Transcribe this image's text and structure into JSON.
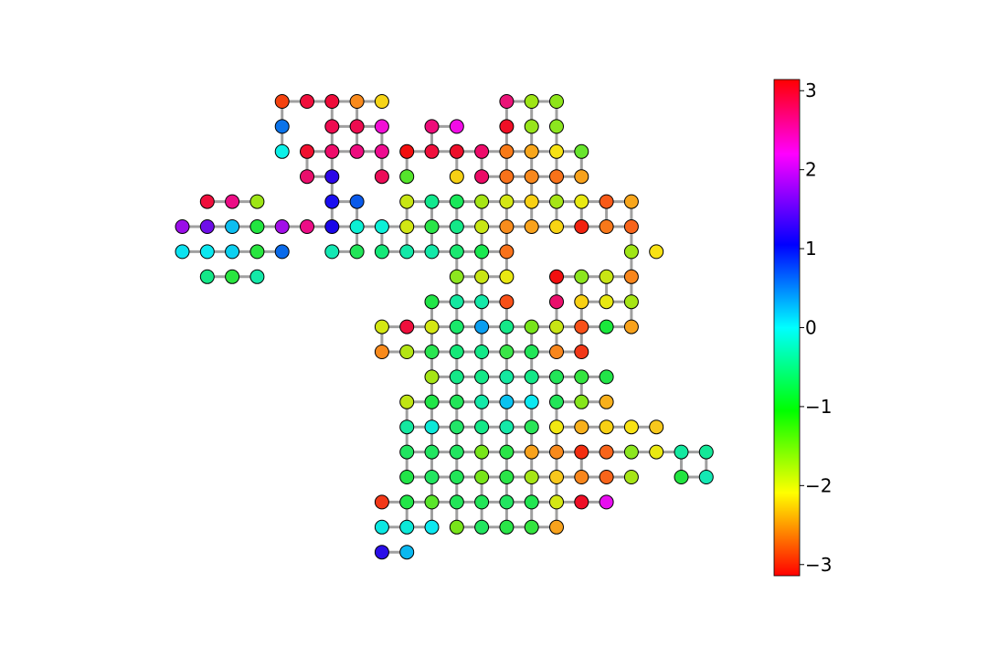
{
  "chart_data": {
    "type": "scatter",
    "title": "",
    "xlabel": "",
    "ylabel": "",
    "grid": false,
    "node_color_scale": "hsv",
    "node_edge_color": "#000000",
    "edge_color": "#a0a0a0",
    "colorbar": {
      "label": "",
      "range": [
        -3.14159,
        3.14159
      ],
      "ticks": [
        3,
        2,
        1,
        0,
        -1,
        -2,
        -3
      ],
      "tick_labels": [
        "3",
        "2",
        "1",
        "0",
        "−1",
        "−2",
        "−3"
      ],
      "stops": [
        {
          "value": 3.14159,
          "color": "#ff0000"
        },
        {
          "value": 2.2,
          "color": "#ff00ff"
        },
        {
          "value": 1.05,
          "color": "#0000ff"
        },
        {
          "value": 0.0,
          "color": "#00ffff"
        },
        {
          "value": -1.05,
          "color": "#00ff00"
        },
        {
          "value": -2.09,
          "color": "#ffff00"
        },
        {
          "value": -3.14159,
          "color": "#ff0000"
        }
      ]
    },
    "grid_layout": {
      "columns": 22,
      "rows": 20
    },
    "rows": [
      {
        "y": 0,
        "x0": 4,
        "values": [
          "#f4420f",
          "#ef0f3c",
          "#ee0c3a",
          "#f88a1c",
          "#f6d417",
          null,
          null,
          null,
          null,
          "#ea1478",
          "#9ee516",
          "#8ee51a"
        ]
      },
      {
        "y": 1,
        "x0": 4,
        "values": [
          "#0a73ea",
          null,
          "#ee0c50",
          "#ee0c50",
          "#f10fd5",
          null,
          "#ee0c7a",
          "#f20ce7",
          null,
          "#ef0f26",
          "#98e51b",
          "#8ce61f"
        ]
      },
      {
        "y": 2,
        "x0": 4,
        "values": [
          "#0df0e8",
          "#f0102f",
          "#ee0c6a",
          "#ee0c7f",
          "#ee0c90",
          "#f20f0f",
          "#ef0f3c",
          "#ed0f2a",
          "#ed0c6a",
          "#f87a18",
          "#f8a61c",
          "#f6e214",
          "#68e52d"
        ]
      },
      {
        "y": 3,
        "x0": 5,
        "values": [
          "#ea0f6c",
          "#2c06e8",
          null,
          "#ec0d58",
          "#54e52c",
          null,
          "#f6d014",
          "#ec0b66",
          "#f8721a",
          "#f8881c",
          "#f8721a",
          "#f8a21c"
        ]
      },
      {
        "y": 4,
        "x0": 1,
        "values": [
          "#ef0f3c",
          "#ec0d86",
          "#9ee516",
          null,
          null,
          "#1a0ef0",
          "#0a5aea",
          null,
          "#c8e514",
          "#12e88e",
          "#1ae85a",
          "#a6e516",
          "#d4e714",
          "#f8d014",
          "#a6e516",
          "#e8e812",
          "#f85a18",
          "#f8a61c"
        ]
      },
      {
        "y": 5,
        "x0": 0,
        "values": [
          "#9a0ee8",
          "#6e0ee8",
          "#0cbef0",
          "#22e540",
          "#a20ee8",
          "#ec0d86",
          "#1a06e8",
          "#0cf0d4",
          "#0cf0d8",
          "#d2e714",
          "#2ae548",
          "#14e888",
          "#c8e614",
          "#f88c1c",
          "#f8a21c",
          "#f8d414",
          "#f2220f",
          "#f8781a",
          "#f8641a"
        ]
      },
      {
        "y": 6,
        "x0": 0,
        "values": [
          "#0ce2f0",
          "#0ce8f0",
          "#0cd0f0",
          "#2ae540",
          "#0a6aea",
          null,
          "#14e8b4",
          "#22e558",
          "#14e878",
          "#14e8a8",
          "#14e8a8",
          "#1ae870",
          "#1ae850",
          "#f8721a",
          null,
          null,
          null,
          null,
          "#a0e516",
          "#f8e214"
        ]
      },
      {
        "y": 7,
        "x0": 1,
        "values": [
          "#14e888",
          "#2ae540",
          "#14e8a8",
          null,
          null,
          null,
          null,
          null,
          null,
          null,
          "#8ce61f",
          "#c8e514",
          "#eae812",
          null,
          "#f20f0f",
          "#8ce61f",
          "#c8e514",
          "#f8861c"
        ]
      },
      {
        "y": 8,
        "x0": 10,
        "values": [
          "#22e548",
          "#14e8a0",
          "#14e8a8",
          "#f85018",
          null,
          "#ea0f6c",
          "#f8d014",
          "#e8e812",
          "#a6e516"
        ]
      },
      {
        "y": 9,
        "x0": 8,
        "values": [
          "#d4e714",
          "#ef0f3c",
          "#d4e714",
          "#1ae86a",
          "#0a9ef0",
          "#14e888",
          "#78e51a",
          "#c8e514",
          "#f85018",
          "#1ae83c",
          "#f8a21c"
        ]
      },
      {
        "y": 10,
        "x0": 8,
        "values": [
          "#f88a1c",
          "#b4e514",
          "#2ae550",
          "#14e878",
          "#14e888",
          "#3ae548",
          "#22e558",
          "#f8861c",
          "#f23818"
        ]
      },
      {
        "y": 11,
        "x0": 10,
        "values": [
          "#a6e516",
          "#14e888",
          "#14e888",
          "#14e8a0",
          "#14e888",
          "#22e558",
          "#34e540",
          "#22e548"
        ]
      },
      {
        "y": 12,
        "x0": 9,
        "values": [
          "#c0e514",
          "#22e548",
          "#22e558",
          "#14e8a8",
          "#0ac2f0",
          "#0ce8f0",
          "#22e558",
          "#86e51c",
          "#f8b01c"
        ]
      },
      {
        "y": 13,
        "x0": 9,
        "values": [
          "#14e8a0",
          "#0ce8d8",
          "#22e568",
          "#14e888",
          "#14e8a8",
          "#2ae558",
          "#f2e812",
          "#f8b01c",
          "#f8d014",
          "#f8e214",
          "#f8c81c"
        ]
      },
      {
        "y": 14,
        "x0": 9,
        "values": [
          "#22e560",
          "#22e560",
          "#22e560",
          "#78e51a",
          "#2ae548",
          "#f8a21c",
          "#f88a1c",
          "#f22e10",
          "#f8641a",
          "#8ce61f",
          "#eae812",
          "#14e8a0",
          "#14e898"
        ]
      },
      {
        "y": 15,
        "x0": 9,
        "values": [
          "#22e548",
          "#22e560",
          "#22e558",
          "#78e51a",
          "#2ae548",
          "#a6e516",
          "#f8c81c",
          "#f8861c",
          "#f8641a",
          "#a6e516",
          null,
          "#22e540",
          "#14e8b4"
        ]
      },
      {
        "y": 16,
        "x0": 8,
        "values": [
          "#f23818",
          "#22e548",
          "#5ae52a",
          "#22e558",
          "#22e558",
          "#22e560",
          "#22e550",
          "#d4e714",
          "#ef0f26",
          "#e80ef0"
        ]
      },
      {
        "y": 17,
        "x0": 8,
        "values": [
          "#0ce8e2",
          "#0ce8d8",
          "#0ce8f0",
          "#78e51a",
          "#22e560",
          "#2ae548",
          "#34e540",
          "#f8a21c"
        ]
      },
      {
        "y": 18,
        "x0": 8,
        "values": [
          "#2a0ee8",
          "#0ab8f0"
        ]
      }
    ],
    "edge_rows": [
      {
        "y": 0,
        "x": [
          4,
          5,
          6,
          7
        ],
        "len": [
          1,
          1,
          1,
          1
        ]
      },
      {
        "y": 0,
        "x": [
          13,
          14
        ],
        "len": [
          1,
          1
        ]
      },
      {
        "y": 1,
        "x": [
          6,
          7,
          10
        ],
        "len": [
          1,
          1,
          1
        ]
      },
      {
        "y": 2,
        "x": [
          5,
          6,
          7,
          9,
          10,
          11,
          12,
          13,
          14,
          15
        ],
        "len": [
          1,
          1,
          1,
          1,
          1,
          1,
          1,
          1,
          1,
          1
        ]
      },
      {
        "y": 3,
        "x": [
          5,
          12,
          13,
          14,
          15
        ],
        "len": [
          1,
          1,
          1,
          1,
          1
        ]
      },
      {
        "y": 4,
        "x": [
          1,
          2,
          6,
          9,
          10,
          11,
          12,
          13,
          14,
          15,
          16,
          17
        ],
        "len": [
          1,
          1,
          1,
          1,
          1,
          1,
          1,
          1,
          1,
          1,
          1,
          1
        ]
      },
      {
        "y": 5,
        "x": [
          0,
          1,
          2,
          3,
          4,
          5,
          6,
          7,
          8,
          9,
          10,
          11,
          12,
          13,
          14,
          15,
          16,
          17
        ],
        "len": [
          1,
          1,
          1,
          1,
          1,
          1,
          1,
          1,
          1,
          1,
          1,
          1,
          1,
          1,
          1,
          1,
          1,
          1
        ]
      },
      {
        "y": 6,
        "x": [
          0,
          1,
          2,
          3,
          6,
          8,
          9,
          10,
          11,
          12
        ],
        "len": [
          1,
          1,
          1,
          1,
          1,
          1,
          1,
          1,
          1,
          1
        ]
      },
      {
        "y": 7,
        "x": [
          1,
          2,
          11,
          12,
          15,
          16,
          17
        ],
        "len": [
          1,
          1,
          1,
          1,
          1,
          1,
          1
        ]
      },
      {
        "y": 8,
        "x": [
          10,
          11,
          12,
          16,
          17,
          18
        ],
        "len": [
          1,
          1,
          1,
          1,
          1,
          1
        ]
      },
      {
        "y": 9,
        "x": [
          8,
          9,
          10,
          11,
          12,
          13,
          14,
          15,
          16,
          17
        ],
        "len": [
          1,
          1,
          1,
          1,
          1,
          1,
          1,
          1,
          1,
          1
        ]
      },
      {
        "y": 10,
        "x": [
          8,
          9,
          10,
          11,
          12,
          13,
          14,
          15
        ],
        "len": [
          1,
          1,
          1,
          1,
          1,
          1,
          1,
          1
        ]
      },
      {
        "y": 11,
        "x": [
          10,
          11,
          12,
          13,
          14,
          15,
          16
        ],
        "len": [
          1,
          1,
          1,
          1,
          1,
          1,
          1
        ]
      },
      {
        "y": 12,
        "x": [
          9,
          10,
          11,
          12,
          13,
          15,
          16
        ],
        "len": [
          1,
          1,
          1,
          1,
          1,
          1,
          1
        ]
      },
      {
        "y": 13,
        "x": [
          9,
          10,
          11,
          12,
          13,
          15,
          16,
          17,
          18
        ],
        "len": [
          1,
          1,
          1,
          1,
          1,
          1,
          1,
          1,
          1
        ]
      },
      {
        "y": 14,
        "x": [
          9,
          10,
          11,
          12,
          13,
          14,
          15,
          16,
          17,
          18,
          19,
          20
        ],
        "len": [
          1,
          1,
          1,
          1,
          1,
          1,
          1,
          1,
          1,
          1,
          1,
          1
        ]
      },
      {
        "y": 15,
        "x": [
          9,
          10,
          11,
          12,
          13,
          14,
          15,
          16,
          17,
          20
        ],
        "len": [
          1,
          1,
          1,
          1,
          1,
          1,
          1,
          1,
          1,
          1
        ]
      },
      {
        "y": 16,
        "x": [
          8,
          9,
          10,
          11,
          12,
          13,
          14,
          15,
          16
        ],
        "len": [
          1,
          1,
          1,
          1,
          1,
          1,
          1,
          1,
          1
        ]
      },
      {
        "y": 17,
        "x": [
          8,
          9,
          11,
          12,
          13,
          14
        ],
        "len": [
          1,
          1,
          1,
          1,
          1,
          1
        ]
      },
      {
        "y": 18,
        "x": [
          8
        ],
        "len": [
          1
        ]
      }
    ],
    "edge_cols": [
      {
        "x": 4,
        "y": [
          0,
          1
        ]
      },
      {
        "x": 5,
        "y": [
          2
        ]
      },
      {
        "x": 6,
        "y": [
          0,
          1,
          2,
          3,
          4
        ]
      },
      {
        "x": 7,
        "y": [
          0,
          1,
          4,
          5
        ]
      },
      {
        "x": 8,
        "y": [
          1,
          2,
          3,
          5,
          9
        ]
      },
      {
        "x": 9,
        "y": [
          2,
          4,
          5,
          12,
          13,
          14,
          16
        ]
      },
      {
        "x": 10,
        "y": [
          1,
          4,
          5,
          6,
          8,
          9,
          10,
          11,
          12,
          13,
          14,
          15,
          16,
          17
        ]
      },
      {
        "x": 11,
        "y": [
          2,
          4,
          5,
          6,
          7,
          8,
          9,
          10,
          11,
          12,
          13,
          14,
          15,
          16
        ]
      },
      {
        "x": 12,
        "y": [
          2,
          4,
          5,
          6,
          7,
          8,
          9,
          10,
          11,
          12,
          13,
          14,
          15,
          16
        ]
      },
      {
        "x": 13,
        "y": [
          0,
          1,
          2,
          3,
          4,
          5,
          6,
          8,
          9,
          10,
          11,
          12,
          13,
          14,
          15,
          16
        ]
      },
      {
        "x": 14,
        "y": [
          0,
          1,
          2,
          3,
          4,
          5,
          7,
          9,
          10,
          11,
          12,
          13,
          14,
          15,
          16
        ]
      },
      {
        "x": 15,
        "y": [
          0,
          1,
          2,
          3,
          4,
          7,
          8,
          9,
          11,
          12,
          13,
          14,
          15,
          16
        ]
      },
      {
        "x": 16,
        "y": [
          2,
          4,
          7,
          8,
          9,
          11,
          14
        ]
      },
      {
        "x": 17,
        "y": [
          4,
          6,
          7,
          9
        ]
      },
      {
        "x": 18,
        "y": [
          4,
          5,
          6,
          7,
          8
        ]
      },
      {
        "x": 19,
        "y": [
          14
        ]
      },
      {
        "x": 20,
        "y": [
          14
        ]
      },
      {
        "x": 21,
        "y": [
          14
        ]
      }
    ]
  }
}
